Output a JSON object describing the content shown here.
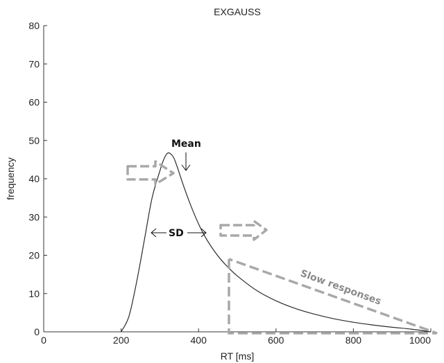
{
  "chart_data": {
    "type": "line",
    "title": "EXGAUSS",
    "xlabel": "RT [ms]",
    "ylabel": "frequency",
    "xlim": [
      0,
      1000
    ],
    "ylim": [
      0,
      80
    ],
    "xticks": [
      "0",
      "200",
      "400",
      "600",
      "800",
      "1000"
    ],
    "yticks": [
      "0",
      "10",
      "20",
      "30",
      "40",
      "50",
      "60",
      "70",
      "80"
    ],
    "grid": false,
    "series": [
      {
        "x": [
          200,
          220,
          240,
          260,
          280,
          300,
          310,
          320,
          330,
          340,
          360,
          380,
          400,
          420,
          440,
          460,
          480,
          500,
          550,
          600,
          650,
          700,
          750,
          800,
          850,
          900,
          950,
          1000
        ],
        "y": [
          0,
          4,
          13,
          24,
          35,
          42,
          45,
          46.7,
          46.3,
          44.5,
          38.5,
          33,
          28.2,
          24.3,
          21.2,
          18.6,
          16.5,
          14.6,
          10.8,
          8.1,
          6.1,
          4.6,
          3.4,
          2.5,
          1.8,
          1.2,
          0.7,
          0
        ]
      }
    ],
    "annotations": {
      "mean_label": "Mean",
      "sd_label": "SD",
      "slow_label": "Slow responses"
    }
  },
  "colors": {
    "curve": "#2b2b2b",
    "axis": "#333333",
    "annotation_gray": "#a8a8a8",
    "annotation_text": "#111111"
  }
}
